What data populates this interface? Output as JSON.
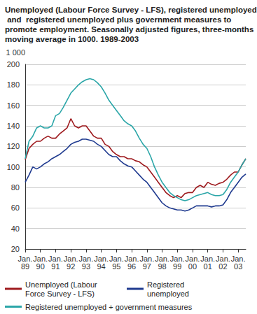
{
  "chart_data": {
    "type": "line",
    "title": "Unemployed (Labour Force Survey - LFS), registered unemployed and  registered unemployed plus government measures to promote employment. Seasonally adjusted figures, three-months moving average in 1000. 1989-2003",
    "y_label": "1 000",
    "categories": [
      "Jan. 89",
      null,
      null,
      null,
      "Jan. 90",
      null,
      null,
      null,
      "Jan. 91",
      null,
      null,
      null,
      "Jan. 92",
      null,
      null,
      null,
      "Jan. 93",
      null,
      null,
      null,
      "Jan. 94",
      null,
      null,
      null,
      "Jan. 95",
      null,
      null,
      null,
      "Jan. 96",
      null,
      null,
      null,
      "Jan. 97",
      null,
      null,
      null,
      "Jan. 98",
      null,
      null,
      null,
      "Jan. 99",
      null,
      null,
      null,
      "Jan. 00",
      null,
      null,
      null,
      "Jan. 01",
      null,
      null,
      null,
      "Jan. 02",
      null,
      null,
      null,
      "Jan. 03",
      null,
      null
    ],
    "series": [
      {
        "name": "Unemployed (Labour Force Survey - LFS)",
        "color": "#9e1a1e",
        "values": [
          107,
          118,
          122,
          125,
          125,
          128,
          130,
          128,
          128,
          132,
          135,
          138,
          147,
          140,
          138,
          140,
          140,
          135,
          130,
          128,
          128,
          122,
          120,
          115,
          112,
          110,
          110,
          108,
          108,
          106,
          105,
          102,
          100,
          95,
          90,
          85,
          80,
          75,
          72,
          70,
          72,
          70,
          74,
          75,
          75,
          80,
          82,
          80,
          85,
          83,
          82,
          84,
          85,
          88,
          92,
          95,
          95,
          102,
          108
        ]
      },
      {
        "name": "Registered unemployed",
        "color": "#1f3a8f",
        "values": [
          85,
          92,
          100,
          98,
          100,
          103,
          105,
          108,
          110,
          112,
          115,
          118,
          122,
          124,
          125,
          127,
          127,
          126,
          125,
          122,
          120,
          116,
          112,
          110,
          110,
          106,
          103,
          101,
          100,
          96,
          92,
          88,
          85,
          80,
          75,
          70,
          65,
          62,
          60,
          59,
          58,
          58,
          57,
          58,
          60,
          62,
          62,
          62,
          62,
          61,
          62,
          62,
          63,
          68,
          75,
          80,
          85,
          90,
          93
        ]
      },
      {
        "name": "Registered unemployed + government measures",
        "color": "#2ba6a8",
        "values": [
          108,
          125,
          130,
          138,
          140,
          138,
          138,
          140,
          150,
          152,
          158,
          165,
          172,
          176,
          180,
          183,
          185,
          186,
          185,
          182,
          178,
          172,
          165,
          160,
          155,
          150,
          145,
          142,
          140,
          135,
          128,
          122,
          118,
          110,
          100,
          92,
          85,
          80,
          75,
          72,
          70,
          68,
          67,
          68,
          70,
          72,
          73,
          74,
          75,
          73,
          72,
          72,
          73,
          78,
          85,
          90,
          95,
          102,
          108
        ]
      }
    ],
    "ylim": [
      20,
      200
    ],
    "yticks": [
      20,
      40,
      60,
      80,
      100,
      120,
      140,
      160,
      180,
      200
    ],
    "grid": true,
    "legend": "bottom"
  }
}
